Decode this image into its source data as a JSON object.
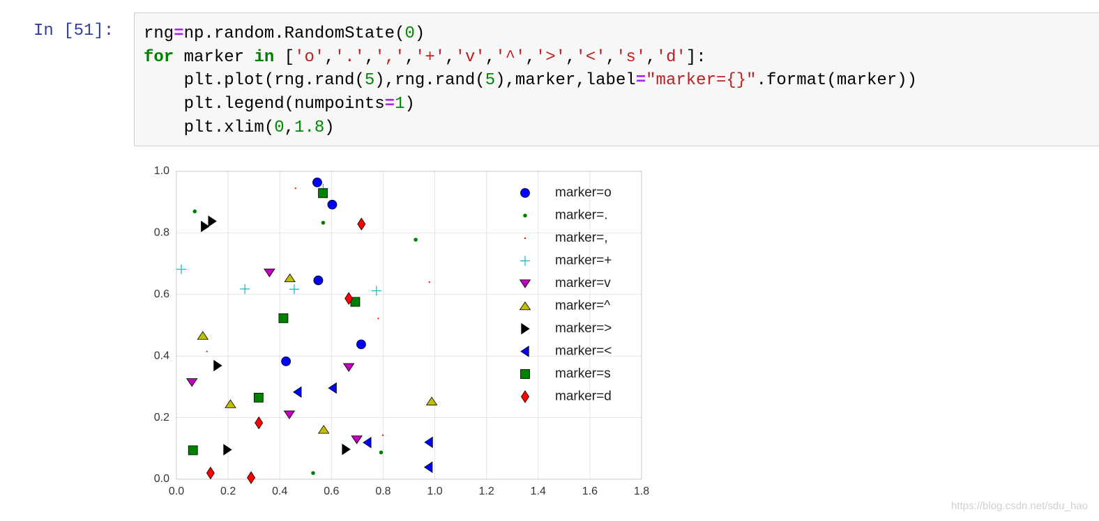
{
  "prompt": "In [51]:",
  "code": [
    [
      {
        "text": "rng"
      },
      {
        "text": "=",
        "color": "#aa22ff",
        "weight": "bold"
      },
      {
        "text": "np.random.RandomState("
      },
      {
        "text": "0",
        "color": "#008800"
      },
      {
        "text": ")"
      }
    ],
    [
      {
        "text": "for",
        "color": "#008000",
        "weight": "bold"
      },
      {
        "text": " marker "
      },
      {
        "text": "in",
        "color": "#008000",
        "weight": "bold"
      },
      {
        "text": " ["
      },
      {
        "text": "'o'",
        "color": "#ba2121"
      },
      {
        "text": ","
      },
      {
        "text": "'.'",
        "color": "#ba2121"
      },
      {
        "text": ","
      },
      {
        "text": "','",
        "color": "#ba2121"
      },
      {
        "text": ","
      },
      {
        "text": "'+'",
        "color": "#ba2121"
      },
      {
        "text": ","
      },
      {
        "text": "'v'",
        "color": "#ba2121"
      },
      {
        "text": ","
      },
      {
        "text": "'^'",
        "color": "#ba2121"
      },
      {
        "text": ","
      },
      {
        "text": "'>'",
        "color": "#ba2121"
      },
      {
        "text": ","
      },
      {
        "text": "'<'",
        "color": "#ba2121"
      },
      {
        "text": ","
      },
      {
        "text": "'s'",
        "color": "#ba2121"
      },
      {
        "text": ","
      },
      {
        "text": "'d'",
        "color": "#ba2121"
      },
      {
        "text": "]:"
      }
    ],
    [
      {
        "text": "    plt.plot(rng.rand("
      },
      {
        "text": "5",
        "color": "#008800"
      },
      {
        "text": "),rng.rand("
      },
      {
        "text": "5",
        "color": "#008800"
      },
      {
        "text": "),marker,label"
      },
      {
        "text": "=",
        "color": "#aa22ff",
        "weight": "bold"
      },
      {
        "text": "\"marker={}\"",
        "color": "#ba2121"
      },
      {
        "text": ".format(marker))"
      }
    ],
    [
      {
        "text": "    plt.legend(numpoints"
      },
      {
        "text": "=",
        "color": "#aa22ff",
        "weight": "bold"
      },
      {
        "text": "1",
        "color": "#008800"
      },
      {
        "text": ")"
      }
    ],
    [
      {
        "text": "    plt.xlim("
      },
      {
        "text": "0",
        "color": "#008800"
      },
      {
        "text": ","
      },
      {
        "text": "1.8",
        "color": "#008800"
      },
      {
        "text": ")"
      }
    ]
  ],
  "chart_data": {
    "type": "scatter",
    "xlim": [
      0,
      1.8
    ],
    "ylim": [
      0,
      1.0
    ],
    "xticks": [
      {
        "value": 0,
        "label": "0.0"
      },
      {
        "value": 0.2,
        "label": "0.2"
      },
      {
        "value": 0.4,
        "label": "0.4"
      },
      {
        "value": 0.6,
        "label": "0.6"
      },
      {
        "value": 0.8,
        "label": "0.8"
      },
      {
        "value": 1.0,
        "label": "1.0"
      },
      {
        "value": 1.2,
        "label": "1.2"
      },
      {
        "value": 1.4,
        "label": "1.4"
      },
      {
        "value": 1.6,
        "label": "1.6"
      },
      {
        "value": 1.8,
        "label": "1.8"
      }
    ],
    "yticks": [
      {
        "value": 0,
        "label": "0.0"
      },
      {
        "value": 0.2,
        "label": "0.2"
      },
      {
        "value": 0.4,
        "label": "0.4"
      },
      {
        "value": 0.6,
        "label": "0.6"
      },
      {
        "value": 0.8,
        "label": "0.8"
      },
      {
        "value": 1.0,
        "label": "1.0"
      }
    ],
    "grid": true,
    "legend": "upper right",
    "series": [
      {
        "name": "marker=o",
        "marker": "o",
        "color": "#0000ff",
        "x": [
          0.549,
          0.715,
          0.603,
          0.545,
          0.424
        ],
        "y": [
          0.646,
          0.438,
          0.892,
          0.964,
          0.383
        ]
      },
      {
        "name": "marker=.",
        "marker": ".",
        "color": "#008000",
        "x": [
          0.792,
          0.529,
          0.568,
          0.926,
          0.071
        ],
        "y": [
          0.087,
          0.02,
          0.833,
          0.778,
          0.87
        ]
      },
      {
        "name": "marker=,",
        "marker": ",",
        "color": "#ff0000",
        "x": [
          0.979,
          0.799,
          0.461,
          0.781,
          0.118
        ],
        "y": [
          0.64,
          0.143,
          0.945,
          0.522,
          0.415
        ]
      },
      {
        "name": "marker=+",
        "marker": "+",
        "color": "#00bfbf",
        "x": [
          0.265,
          0.774,
          0.456,
          0.568,
          0.019
        ],
        "y": [
          0.618,
          0.612,
          0.617,
          0.944,
          0.682
        ]
      },
      {
        "name": "marker=v",
        "marker": "v",
        "color": "#bf00bf",
        "x": [
          0.36,
          0.437,
          0.698,
          0.06,
          0.667
        ],
        "y": [
          0.671,
          0.21,
          0.129,
          0.315,
          0.364
        ]
      },
      {
        "name": "marker=^",
        "marker": "^",
        "color": "#bfbf00",
        "x": [
          0.57,
          0.439,
          0.988,
          0.102,
          0.209
        ],
        "y": [
          0.161,
          0.653,
          0.253,
          0.466,
          0.244
        ]
      },
      {
        "name": "marker=>",
        "marker": ">",
        "color": "#000000",
        "x": [
          0.159,
          0.11,
          0.656,
          0.138,
          0.197
        ],
        "y": [
          0.369,
          0.821,
          0.097,
          0.838,
          0.096
        ]
      },
      {
        "name": "marker=<",
        "marker": "<",
        "color": "#0000ff",
        "x": [
          0.976,
          0.469,
          0.977,
          0.605,
          0.739
        ],
        "y": [
          0.039,
          0.283,
          0.12,
          0.296,
          0.119
        ]
      },
      {
        "name": "marker=s",
        "marker": "s",
        "color": "#008000",
        "x": [
          0.318,
          0.414,
          0.064,
          0.692,
          0.567
        ],
        "y": [
          0.265,
          0.523,
          0.094,
          0.576,
          0.929
        ]
      },
      {
        "name": "marker=d",
        "marker": "d",
        "color": "#ff0000",
        "x": [
          0.319,
          0.667,
          0.132,
          0.716,
          0.289
        ],
        "y": [
          0.183,
          0.587,
          0.02,
          0.829,
          0.005
        ]
      }
    ]
  },
  "watermark": "https://blog.csdn.net/sdu_hao"
}
